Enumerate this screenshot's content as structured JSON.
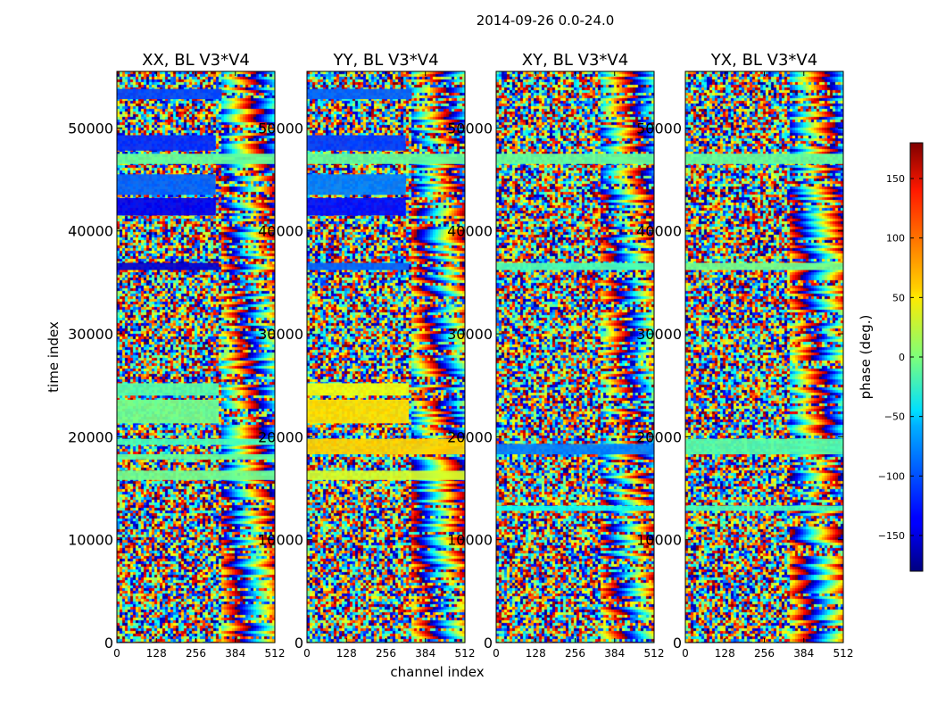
{
  "chart_data": {
    "type": "heatmap",
    "suptitle": "2014-09-26 0.0-24.0",
    "xlabel": "channel index",
    "ylabel": "time index",
    "xlim": [
      0,
      512
    ],
    "ylim": [
      0,
      55500
    ],
    "x_ticks": [
      0,
      128,
      256,
      384,
      512
    ],
    "x_tick_labels": [
      "0",
      "128",
      "256",
      "384",
      "512"
    ],
    "y_ticks": [
      0,
      10000,
      20000,
      30000,
      40000,
      50000
    ],
    "y_tick_labels": [
      "0",
      "10000",
      "20000",
      "30000",
      "40000",
      "50000"
    ],
    "colormap": "jet",
    "colorbar": {
      "label": "phase (deg.)",
      "range": [
        -180,
        180
      ],
      "ticks": [
        -150,
        -100,
        -50,
        0,
        50,
        100,
        150
      ],
      "tick_labels": [
        "−150",
        "−100",
        "−50",
        "0",
        "50",
        "100",
        "150"
      ]
    },
    "panels": [
      {
        "title": "XX, BL V3*V4",
        "bands": [
          {
            "t0": 52800,
            "t1": 53800,
            "phase": -110,
            "c1": 340
          },
          {
            "t0": 47800,
            "t1": 49300,
            "phase": -120,
            "c1": 320
          },
          {
            "t0": 46500,
            "t1": 47500,
            "phase": -10,
            "c1": 512
          },
          {
            "t0": 43500,
            "t1": 45500,
            "phase": -100,
            "c1": 320
          },
          {
            "t0": 41500,
            "t1": 43200,
            "phase": -140,
            "c1": 320
          },
          {
            "t0": 36200,
            "t1": 36900,
            "phase": -150,
            "c1": 330
          },
          {
            "t0": 24000,
            "t1": 25200,
            "phase": -15,
            "c1": 330
          },
          {
            "t0": 21300,
            "t1": 23600,
            "phase": -5,
            "c1": 330
          },
          {
            "t0": 19200,
            "t1": 19800,
            "phase": -20,
            "c1": 512
          },
          {
            "t0": 17800,
            "t1": 18300,
            "phase": -10,
            "c1": 512
          },
          {
            "t0": 15800,
            "t1": 16700,
            "phase": -5,
            "c1": 512
          }
        ]
      },
      {
        "title": "YY, BL V3*V4",
        "bands": [
          {
            "t0": 52800,
            "t1": 53800,
            "phase": -100,
            "c1": 340
          },
          {
            "t0": 47800,
            "t1": 49300,
            "phase": -115,
            "c1": 320
          },
          {
            "t0": 46500,
            "t1": 47500,
            "phase": -10,
            "c1": 512
          },
          {
            "t0": 43500,
            "t1": 45500,
            "phase": -90,
            "c1": 320
          },
          {
            "t0": 41500,
            "t1": 43200,
            "phase": -130,
            "c1": 320
          },
          {
            "t0": 36200,
            "t1": 36900,
            "phase": -100,
            "c1": 330
          },
          {
            "t0": 24000,
            "t1": 25200,
            "phase": 40,
            "c1": 330
          },
          {
            "t0": 21300,
            "t1": 23600,
            "phase": 55,
            "c1": 330
          },
          {
            "t0": 18300,
            "t1": 19800,
            "phase": 60,
            "c1": 512
          },
          {
            "t0": 15800,
            "t1": 16700,
            "phase": 30,
            "c1": 512
          }
        ]
      },
      {
        "title": "XY, BL V3*V4",
        "bands": [
          {
            "t0": 46500,
            "t1": 47500,
            "phase": -10,
            "c1": 512
          },
          {
            "t0": 36200,
            "t1": 36900,
            "phase": -20,
            "c1": 512
          },
          {
            "t0": 18300,
            "t1": 19300,
            "phase": -90,
            "c1": 512
          },
          {
            "t0": 12800,
            "t1": 13300,
            "phase": -40,
            "c1": 512
          }
        ]
      },
      {
        "title": "YX, BL V3*V4",
        "bands": [
          {
            "t0": 46500,
            "t1": 47500,
            "phase": -10,
            "c1": 512
          },
          {
            "t0": 36200,
            "t1": 36900,
            "phase": -5,
            "c1": 512
          },
          {
            "t0": 18300,
            "t1": 19800,
            "phase": -15,
            "c1": 512
          },
          {
            "t0": 12800,
            "t1": 13300,
            "phase": -20,
            "c1": 512
          }
        ]
      }
    ]
  }
}
